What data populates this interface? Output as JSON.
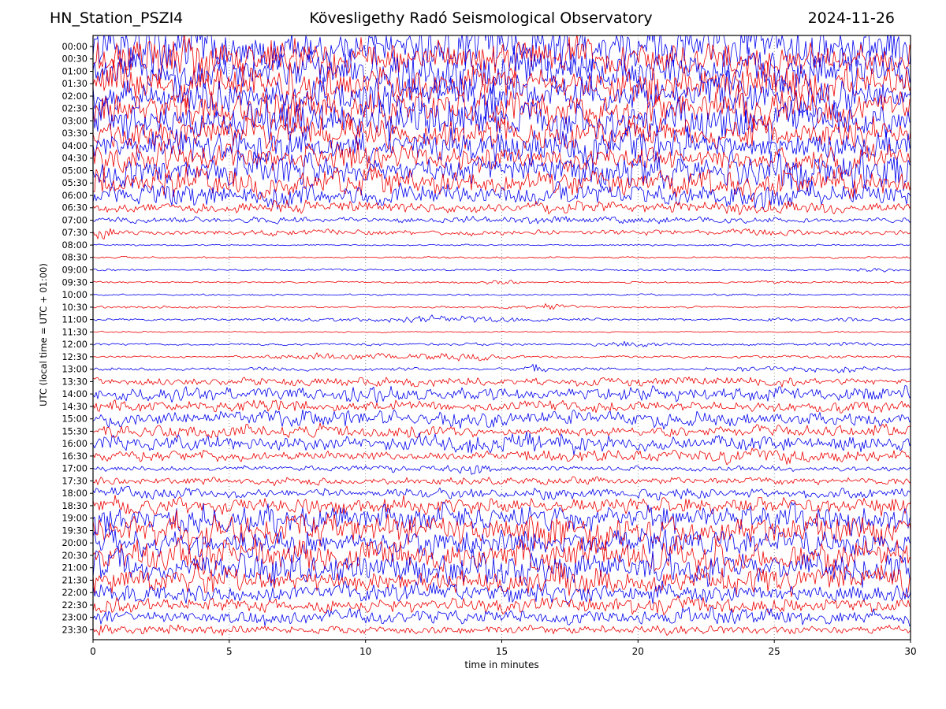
{
  "header": {
    "station": "HN_Station_PSZI4",
    "observatory": "Kövesligethy Radó Seismological Observatory",
    "date": "2024-11-26"
  },
  "chart_data": {
    "type": "line",
    "variant": "helicorder_day_plot_seismogram",
    "title": "Kövesligethy Radó Seismological Observatory",
    "station": "HN_Station_PSZI4",
    "date": "2024-11-26",
    "xlabel": "time in minutes",
    "ylabel": "UTC (local time = UTC + 01:00)",
    "x_range": [
      0,
      30
    ],
    "x_ticks": [
      0,
      5,
      10,
      15,
      20,
      25,
      30
    ],
    "grid": {
      "vertical_at_minutes": [
        5,
        10,
        15,
        20,
        25
      ],
      "style": "dotted"
    },
    "colors": {
      "trace_hour": "#0000ee",
      "trace_half_hour": "#ee0000",
      "grid": "#777777",
      "axis": "#000000"
    },
    "legend": "blue = traces starting on the hour, red = traces starting on the half hour; 48 half-hour rows, 30 minutes per row",
    "amplitude_units": "estimated half-peak trace amplitude in screen px; events = [center_minute, sigma_minutes, extra_amplitude]",
    "rows": [
      {
        "label": "00:00",
        "color": "blue",
        "noise_amp": 34,
        "events": []
      },
      {
        "label": "00:30",
        "color": "red",
        "noise_amp": 29,
        "events": []
      },
      {
        "label": "01:00",
        "color": "blue",
        "noise_amp": 33,
        "events": []
      },
      {
        "label": "01:30",
        "color": "red",
        "noise_amp": 29,
        "events": []
      },
      {
        "label": "02:00",
        "color": "blue",
        "noise_amp": 31,
        "events": []
      },
      {
        "label": "02:30",
        "color": "red",
        "noise_amp": 27,
        "events": []
      },
      {
        "label": "03:00",
        "color": "blue",
        "noise_amp": 31,
        "events": []
      },
      {
        "label": "03:30",
        "color": "red",
        "noise_amp": 27,
        "events": []
      },
      {
        "label": "04:00",
        "color": "blue",
        "noise_amp": 25,
        "events": []
      },
      {
        "label": "04:30",
        "color": "red",
        "noise_amp": 21,
        "events": []
      },
      {
        "label": "05:00",
        "color": "blue",
        "noise_amp": 25,
        "events": []
      },
      {
        "label": "05:30",
        "color": "red",
        "noise_amp": 21,
        "events": []
      },
      {
        "label": "06:00",
        "color": "blue",
        "noise_amp": 17,
        "events": []
      },
      {
        "label": "06:30",
        "color": "red",
        "noise_amp": 9,
        "events": []
      },
      {
        "label": "07:00",
        "color": "blue",
        "noise_amp": 5,
        "events": []
      },
      {
        "label": "07:30",
        "color": "red",
        "noise_amp": 4.5,
        "events": [
          [
            0.4,
            0.25,
            9
          ]
        ]
      },
      {
        "label": "08:00",
        "color": "blue",
        "noise_amp": 1.2,
        "events": []
      },
      {
        "label": "08:30",
        "color": "red",
        "noise_amp": 1.4,
        "events": []
      },
      {
        "label": "09:00",
        "color": "blue",
        "noise_amp": 1.6,
        "events": [
          [
            28.8,
            0.5,
            2.5
          ]
        ]
      },
      {
        "label": "09:30",
        "color": "red",
        "noise_amp": 1.6,
        "events": [
          [
            15,
            0.5,
            2
          ],
          [
            25,
            0.5,
            2
          ]
        ]
      },
      {
        "label": "10:00",
        "color": "blue",
        "noise_amp": 1.6,
        "events": []
      },
      {
        "label": "10:30",
        "color": "red",
        "noise_amp": 1.6,
        "events": [
          [
            16.8,
            0.5,
            2.5
          ]
        ]
      },
      {
        "label": "11:00",
        "color": "blue",
        "noise_amp": 1.8,
        "events": [
          [
            12,
            2.2,
            4.5
          ],
          [
            25,
            0.6,
            2
          ],
          [
            27.6,
            0.5,
            1.8
          ]
        ]
      },
      {
        "label": "11:30",
        "color": "red",
        "noise_amp": 1.2,
        "events": []
      },
      {
        "label": "12:00",
        "color": "blue",
        "noise_amp": 1.7,
        "events": [
          [
            10.3,
            0.4,
            2.5
          ],
          [
            19.5,
            0.7,
            3.5
          ],
          [
            27.8,
            0.6,
            2
          ]
        ]
      },
      {
        "label": "12:30",
        "color": "red",
        "noise_amp": 1.8,
        "events": [
          [
            9,
            1.4,
            5.5
          ],
          [
            13,
            1.4,
            5
          ]
        ]
      },
      {
        "label": "13:00",
        "color": "blue",
        "noise_amp": 2.5,
        "events": [
          [
            16.2,
            0.25,
            8
          ],
          [
            26.5,
            1.5,
            3
          ]
        ]
      },
      {
        "label": "13:30",
        "color": "red",
        "noise_amp": 6,
        "events": []
      },
      {
        "label": "14:00",
        "color": "blue",
        "noise_amp": 11,
        "events": []
      },
      {
        "label": "14:30",
        "color": "red",
        "noise_amp": 9,
        "events": []
      },
      {
        "label": "15:00",
        "color": "blue",
        "noise_amp": 12,
        "events": []
      },
      {
        "label": "15:30",
        "color": "red",
        "noise_amp": 10,
        "events": []
      },
      {
        "label": "16:00",
        "color": "blue",
        "noise_amp": 13,
        "events": []
      },
      {
        "label": "16:30",
        "color": "red",
        "noise_amp": 9,
        "events": []
      },
      {
        "label": "17:00",
        "color": "blue",
        "noise_amp": 4.5,
        "events": [
          [
            14,
            0.5,
            5
          ]
        ]
      },
      {
        "label": "17:30",
        "color": "red",
        "noise_amp": 6,
        "events": []
      },
      {
        "label": "18:00",
        "color": "blue",
        "noise_amp": 8,
        "events": []
      },
      {
        "label": "18:30",
        "color": "red",
        "noise_amp": 14,
        "events": []
      },
      {
        "label": "19:00",
        "color": "blue",
        "noise_amp": 20,
        "events": []
      },
      {
        "label": "19:30",
        "color": "red",
        "noise_amp": 26,
        "events": []
      },
      {
        "label": "20:00",
        "color": "blue",
        "noise_amp": 23,
        "events": []
      },
      {
        "label": "20:30",
        "color": "red",
        "noise_amp": 27,
        "events": []
      },
      {
        "label": "21:00",
        "color": "blue",
        "noise_amp": 25,
        "events": []
      },
      {
        "label": "21:30",
        "color": "red",
        "noise_amp": 21,
        "events": []
      },
      {
        "label": "22:00",
        "color": "blue",
        "noise_amp": 17,
        "events": []
      },
      {
        "label": "22:30",
        "color": "red",
        "noise_amp": 13,
        "events": []
      },
      {
        "label": "23:00",
        "color": "blue",
        "noise_amp": 11,
        "events": []
      },
      {
        "label": "23:30",
        "color": "red",
        "noise_amp": 7,
        "events": [
          [
            0.3,
            0.25,
            12
          ]
        ]
      }
    ]
  }
}
